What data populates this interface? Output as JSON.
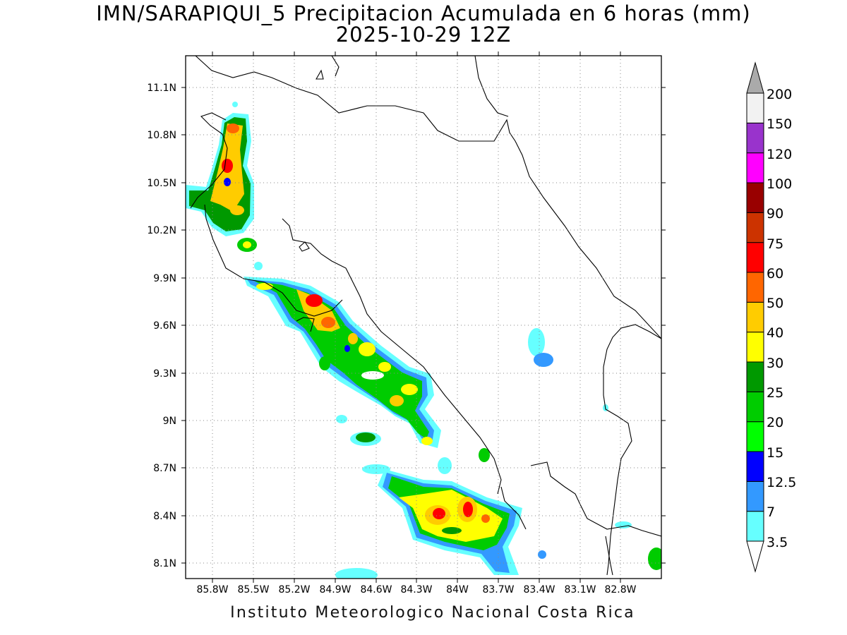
{
  "title": {
    "line1": "IMN/SARAPIQUI_5 Precipitacion Acumulada en 6 horas (mm)",
    "line2": "2025-10-29 12Z"
  },
  "footer": "Instituto Meteorologico Nacional Costa Rica",
  "map": {
    "lon_range": [
      -86.0,
      -82.5
    ],
    "lat_range": [
      8.0,
      11.3
    ],
    "lat_ticks": [
      "11.1N",
      "10.8N",
      "10.5N",
      "10.2N",
      "9.9N",
      "9.6N",
      "9.3N",
      "9N",
      "8.7N",
      "8.4N",
      "8.1N"
    ],
    "lon_ticks": [
      "85.8W",
      "85.5W",
      "85.2W",
      "84.9W",
      "84.6W",
      "84.3W",
      "84W",
      "83.7W",
      "83.4W",
      "83.1W",
      "82.8W"
    ],
    "grid": "dotted"
  },
  "colorbar": {
    "labels": [
      "3.5",
      "7",
      "12.5",
      "15",
      "20",
      "25",
      "30",
      "40",
      "50",
      "60",
      "75",
      "90",
      "100",
      "120",
      "150",
      "200"
    ],
    "colors": [
      "#66ffff",
      "#3399ff",
      "#0000ff",
      "#00ff00",
      "#00cc00",
      "#009900",
      "#ffff00",
      "#ffcc00",
      "#ff6600",
      "#ff0000",
      "#cc3300",
      "#990000",
      "#ff00ff",
      "#9933cc",
      "#f2f2f2"
    ],
    "over_color": "#aaaaaa",
    "under_color": "#ffffff"
  }
}
